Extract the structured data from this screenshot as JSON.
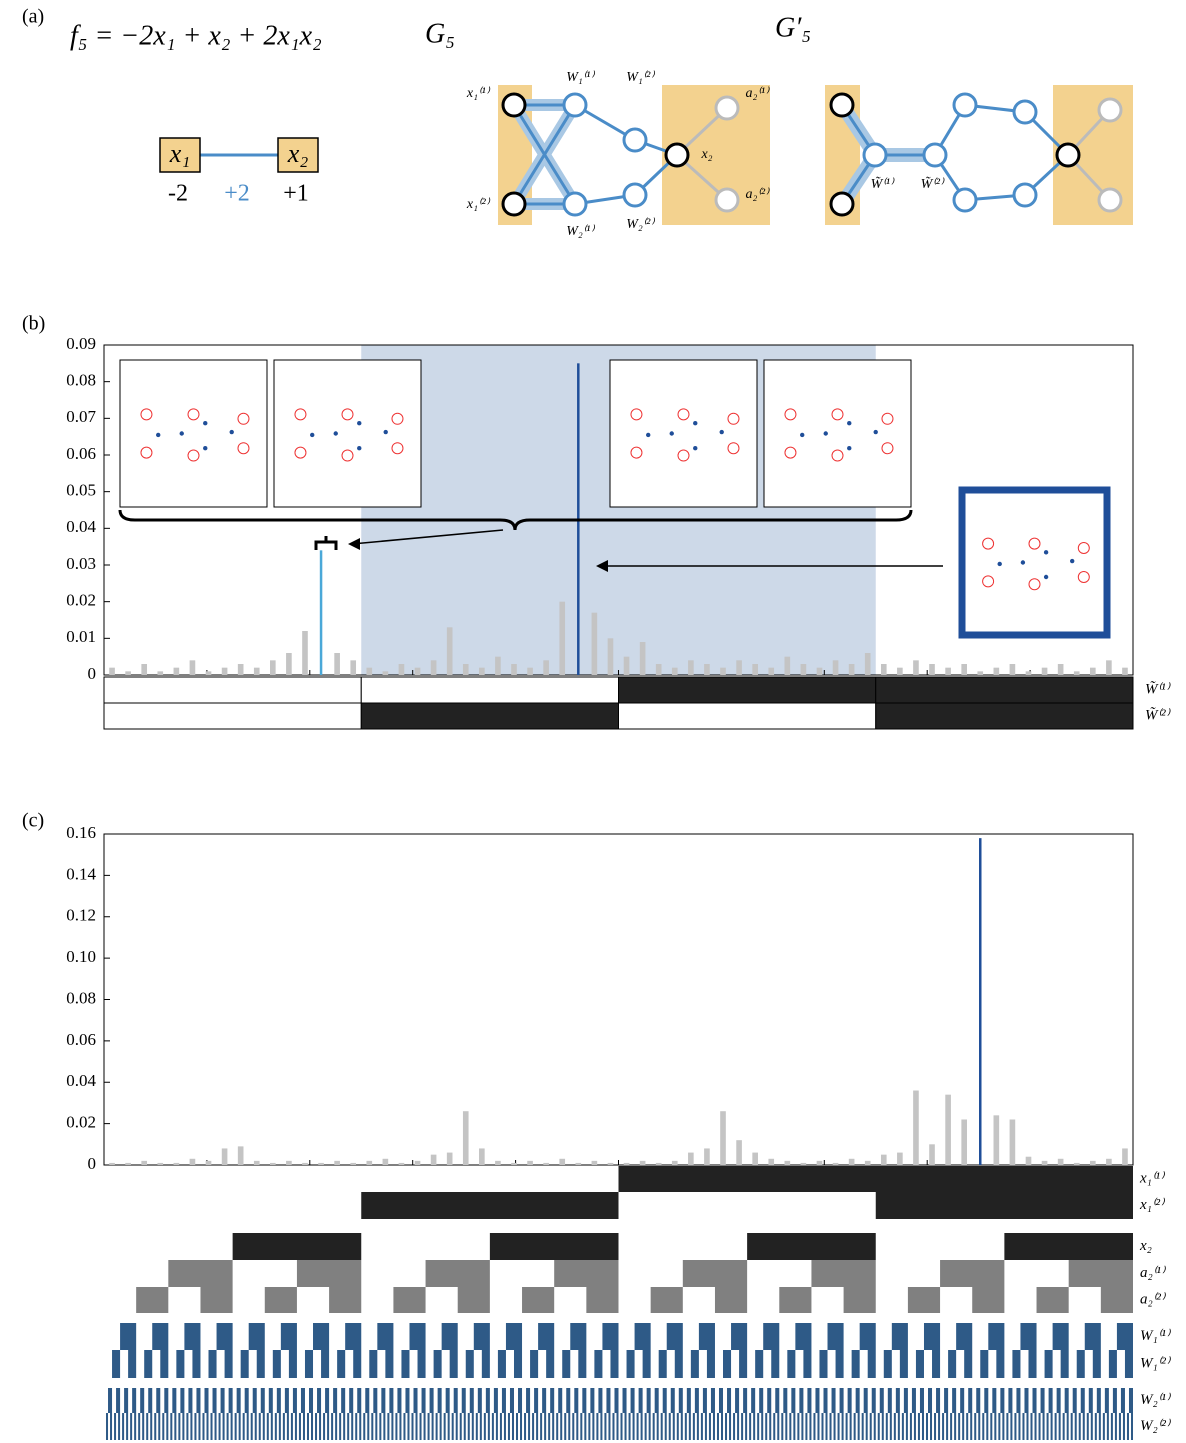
{
  "panel_labels": [
    "(a)",
    "(b)",
    "(c)"
  ],
  "panel_a": {
    "equation": "f₅ = −2x₁ + x₂ + 2x₁x₂",
    "graph_titles": [
      "G₅",
      "G′₅"
    ],
    "factor_nodes": [
      "x₁",
      "x₂"
    ],
    "weights": [
      "-2",
      "+2",
      "+1"
    ],
    "g5_labels": [
      "x₁⁽¹⁾",
      "x₁⁽²⁾",
      "W₁⁽¹⁾",
      "W₂⁽¹⁾",
      "W₁⁽²⁾",
      "W₂⁽²⁾",
      "x₂",
      "a₂⁽¹⁾",
      "a₂⁽²⁾"
    ],
    "g5p_labels": [
      "W̃⁽¹⁾",
      "W̃⁽²⁾"
    ]
  },
  "chart_data": [
    {
      "type": "bar",
      "ylim": [
        0,
        0.09
      ],
      "yticks": [
        0,
        0.01,
        0.02,
        0.03,
        0.04,
        0.05,
        0.06,
        0.07,
        0.08,
        0.09
      ],
      "series": [
        {
          "color": "#c4c4c4",
          "values": [
            0.002,
            0.001,
            0.003,
            0.001,
            0.002,
            0.004,
            0.001,
            0.002,
            0.003,
            0.002,
            0.004,
            0.006,
            0.012,
            null,
            0.006,
            0.004,
            0.002,
            0.001,
            0.003,
            0.002,
            0.004,
            0.013,
            0.003,
            0.002,
            0.005,
            0.003,
            0.002,
            0.004,
            0.02,
            null,
            0.017,
            0.01,
            0.005,
            0.009,
            0.003,
            0.002,
            0.004,
            0.003,
            0.002,
            0.004,
            0.003,
            0.002,
            0.005,
            0.003,
            0.002,
            0.004,
            0.003,
            0.006,
            0.003,
            0.002,
            0.004,
            0.003,
            0.002,
            0.003,
            0.001,
            0.002,
            0.003,
            0.001,
            0.002,
            0.003,
            0.001,
            0.002,
            0.004,
            0.002
          ]
        },
        {
          "color": "#4aa8d8",
          "values": [
            null,
            null,
            null,
            null,
            null,
            null,
            null,
            null,
            null,
            null,
            null,
            null,
            null,
            0.034,
            null,
            null,
            null,
            null,
            null,
            null,
            null,
            null,
            null,
            null,
            null,
            null,
            null,
            null,
            null,
            null,
            null,
            null,
            null,
            null,
            null,
            null,
            null,
            null,
            null,
            null,
            null,
            null,
            null,
            null,
            null,
            null,
            null,
            null,
            null,
            null,
            null,
            null,
            null,
            null,
            null,
            null,
            null,
            null,
            null,
            null,
            null,
            null,
            null,
            null
          ]
        },
        {
          "color": "#1f4e99",
          "values": [
            null,
            null,
            null,
            null,
            null,
            null,
            null,
            null,
            null,
            null,
            null,
            null,
            null,
            null,
            null,
            null,
            null,
            null,
            null,
            null,
            null,
            null,
            null,
            null,
            null,
            null,
            null,
            null,
            null,
            0.085,
            null,
            null,
            null,
            null,
            null,
            null,
            null,
            null,
            null,
            null,
            null,
            null,
            null,
            null,
            null,
            null,
            null,
            null,
            null,
            null,
            null,
            null,
            null,
            null,
            null,
            null,
            null,
            null,
            null,
            null,
            null,
            null,
            null,
            null
          ]
        }
      ],
      "row_labels": [
        "W̃⁽¹⁾",
        "W̃⁽²⁾"
      ]
    },
    {
      "type": "bar",
      "ylim": [
        0,
        0.16
      ],
      "yticks": [
        0,
        0.02,
        0.04,
        0.06,
        0.08,
        {
          "value": 0.1,
          "label": "0.10"
        },
        0.12,
        0.14,
        0.16
      ],
      "series": [
        {
          "color": "#c4c4c4",
          "values": [
            0.001,
            0.001,
            0.002,
            0.001,
            0.001,
            0.003,
            0.002,
            0.008,
            0.009,
            0.002,
            0.001,
            0.002,
            0.001,
            0.001,
            0.002,
            0.001,
            0.002,
            0.003,
            0.001,
            0.002,
            0.005,
            0.006,
            0.026,
            0.008,
            0.002,
            0.001,
            0.002,
            0.001,
            0.003,
            0.001,
            0.002,
            0.001,
            0.001,
            0.002,
            0.001,
            0.002,
            0.006,
            0.008,
            0.026,
            0.012,
            0.006,
            0.003,
            0.002,
            0.001,
            0.002,
            0.001,
            0.003,
            0.002,
            0.005,
            0.006,
            0.036,
            0.01,
            0.034,
            0.022,
            null,
            0.024,
            0.022,
            0.004,
            0.002,
            0.003,
            0.001,
            0.002,
            0.003,
            0.008
          ]
        },
        {
          "color": "#1f4e99",
          "values": [
            null,
            null,
            null,
            null,
            null,
            null,
            null,
            null,
            null,
            null,
            null,
            null,
            null,
            null,
            null,
            null,
            null,
            null,
            null,
            null,
            null,
            null,
            null,
            null,
            null,
            null,
            null,
            null,
            null,
            null,
            null,
            null,
            null,
            null,
            null,
            null,
            null,
            null,
            null,
            null,
            null,
            null,
            null,
            null,
            null,
            null,
            null,
            null,
            null,
            null,
            null,
            null,
            null,
            null,
            0.158,
            null,
            null,
            null,
            null,
            null,
            null,
            null,
            null,
            null
          ]
        }
      ],
      "row_labels": [
        "x₁⁽¹⁾",
        "x₁⁽²⁾",
        "x₂",
        "a₂⁽¹⁾",
        "a₂⁽²⁾",
        "W₁⁽¹⁾",
        "W₁⁽²⁾",
        "W₂⁽¹⁾",
        "W₂⁽²⁾"
      ]
    }
  ]
}
